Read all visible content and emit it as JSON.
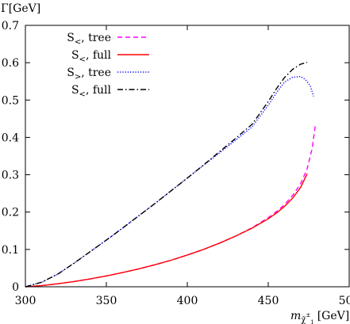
{
  "chart_data": {
    "type": "line",
    "title": "",
    "ylabel": "Γ[GeV]",
    "xlabel": "m_{χ̃₁⁺} [GeV]",
    "xlabel_main": "m",
    "xlabel_sub": "χ̃",
    "xlabel_subsub": "1",
    "xlabel_sup": "±",
    "xlabel_unit": "[GeV]",
    "xlim": [
      300,
      500
    ],
    "ylim": [
      0,
      0.7
    ],
    "xticks": [
      "300",
      "350",
      "400",
      "450",
      "500"
    ],
    "yticks": [
      "0",
      "0.1",
      "0.2",
      "0.3",
      "0.4",
      "0.5",
      "0.6",
      "0.7"
    ],
    "xtick_values": [
      300,
      350,
      400,
      450,
      500
    ],
    "ytick_values": [
      0,
      0.1,
      0.2,
      0.3,
      0.4,
      0.5,
      0.6,
      0.7
    ],
    "grid": false,
    "zero_line": true,
    "legend_position": "top-left",
    "series": [
      {
        "name": "S<, tree",
        "label_main": "S",
        "label_sub": "<",
        "label_rest": ", tree",
        "color": "#ff00ff",
        "style": "dashed",
        "x": [
          300,
          310,
          320,
          330,
          340,
          350,
          360,
          370,
          380,
          390,
          400,
          410,
          420,
          430,
          440,
          450,
          455,
          460,
          465,
          470,
          474,
          477,
          479
        ],
        "y": [
          0.0,
          0.003,
          0.008,
          0.014,
          0.021,
          0.029,
          0.038,
          0.048,
          0.059,
          0.071,
          0.085,
          0.1,
          0.117,
          0.136,
          0.158,
          0.185,
          0.201,
          0.22,
          0.244,
          0.276,
          0.316,
          0.368,
          0.43
        ]
      },
      {
        "name": "S<, full",
        "label_main": "S",
        "label_sub": "<",
        "label_rest": ", full",
        "color": "#ff0000",
        "style": "solid",
        "x": [
          300,
          310,
          320,
          330,
          340,
          350,
          360,
          370,
          380,
          390,
          400,
          410,
          420,
          430,
          440,
          450,
          455,
          460,
          465,
          470,
          474
        ],
        "y": [
          0.0,
          0.003,
          0.008,
          0.014,
          0.021,
          0.029,
          0.038,
          0.048,
          0.059,
          0.071,
          0.085,
          0.1,
          0.117,
          0.136,
          0.157,
          0.182,
          0.197,
          0.215,
          0.237,
          0.266,
          0.303
        ]
      },
      {
        "name": "S>, tree",
        "label_main": "S",
        "label_sub": ">",
        "label_rest": ", tree",
        "color": "#0000ff",
        "style": "dotted",
        "x": [
          300,
          310,
          320,
          330,
          340,
          350,
          360,
          370,
          380,
          390,
          400,
          410,
          420,
          430,
          440,
          450,
          455,
          460,
          465,
          470,
          473,
          476,
          478
        ],
        "y": [
          0.0,
          0.012,
          0.034,
          0.063,
          0.094,
          0.125,
          0.157,
          0.19,
          0.223,
          0.257,
          0.291,
          0.325,
          0.359,
          0.393,
          0.428,
          0.486,
          0.519,
          0.548,
          0.561,
          0.563,
          0.555,
          0.538,
          0.51
        ]
      },
      {
        "name": "S<, full",
        "label_main": "S",
        "label_sub": "<",
        "label_rest": ", full",
        "color": "#000000",
        "style": "dashdot",
        "x": [
          300,
          310,
          320,
          330,
          340,
          350,
          360,
          370,
          380,
          390,
          400,
          410,
          420,
          430,
          440,
          450,
          455,
          460,
          465,
          470,
          474
        ],
        "y": [
          0.0,
          0.012,
          0.034,
          0.063,
          0.094,
          0.125,
          0.157,
          0.19,
          0.223,
          0.257,
          0.291,
          0.326,
          0.362,
          0.398,
          0.435,
          0.496,
          0.53,
          0.56,
          0.582,
          0.596,
          0.601
        ]
      }
    ]
  }
}
